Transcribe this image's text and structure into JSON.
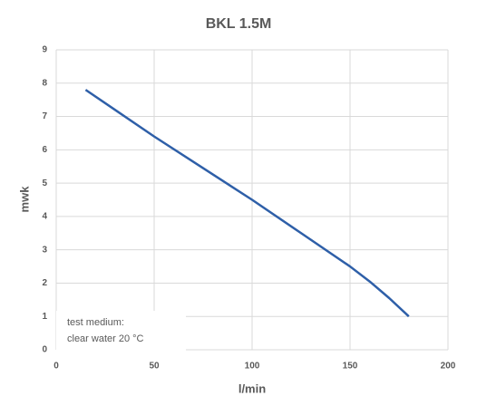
{
  "chart_data": {
    "type": "line",
    "title": "BKL 1.5M",
    "x_label": "l/min",
    "y_label": "mwk",
    "x": [
      15,
      30,
      50,
      75,
      100,
      125,
      150,
      160,
      170,
      180
    ],
    "values": [
      7.8,
      7.2,
      6.4,
      5.45,
      4.5,
      3.5,
      2.5,
      2.05,
      1.55,
      1.0
    ],
    "color": "#2e5fa8",
    "xlim": [
      0,
      200
    ],
    "xticks": [
      0,
      50,
      100,
      150,
      200
    ],
    "ylim": [
      0,
      9
    ],
    "yticks": [
      0,
      1,
      2,
      3,
      4,
      5,
      6,
      7,
      8,
      9
    ],
    "grid": true,
    "annotations": [
      "test medium:",
      "clear water 20 °C"
    ]
  }
}
